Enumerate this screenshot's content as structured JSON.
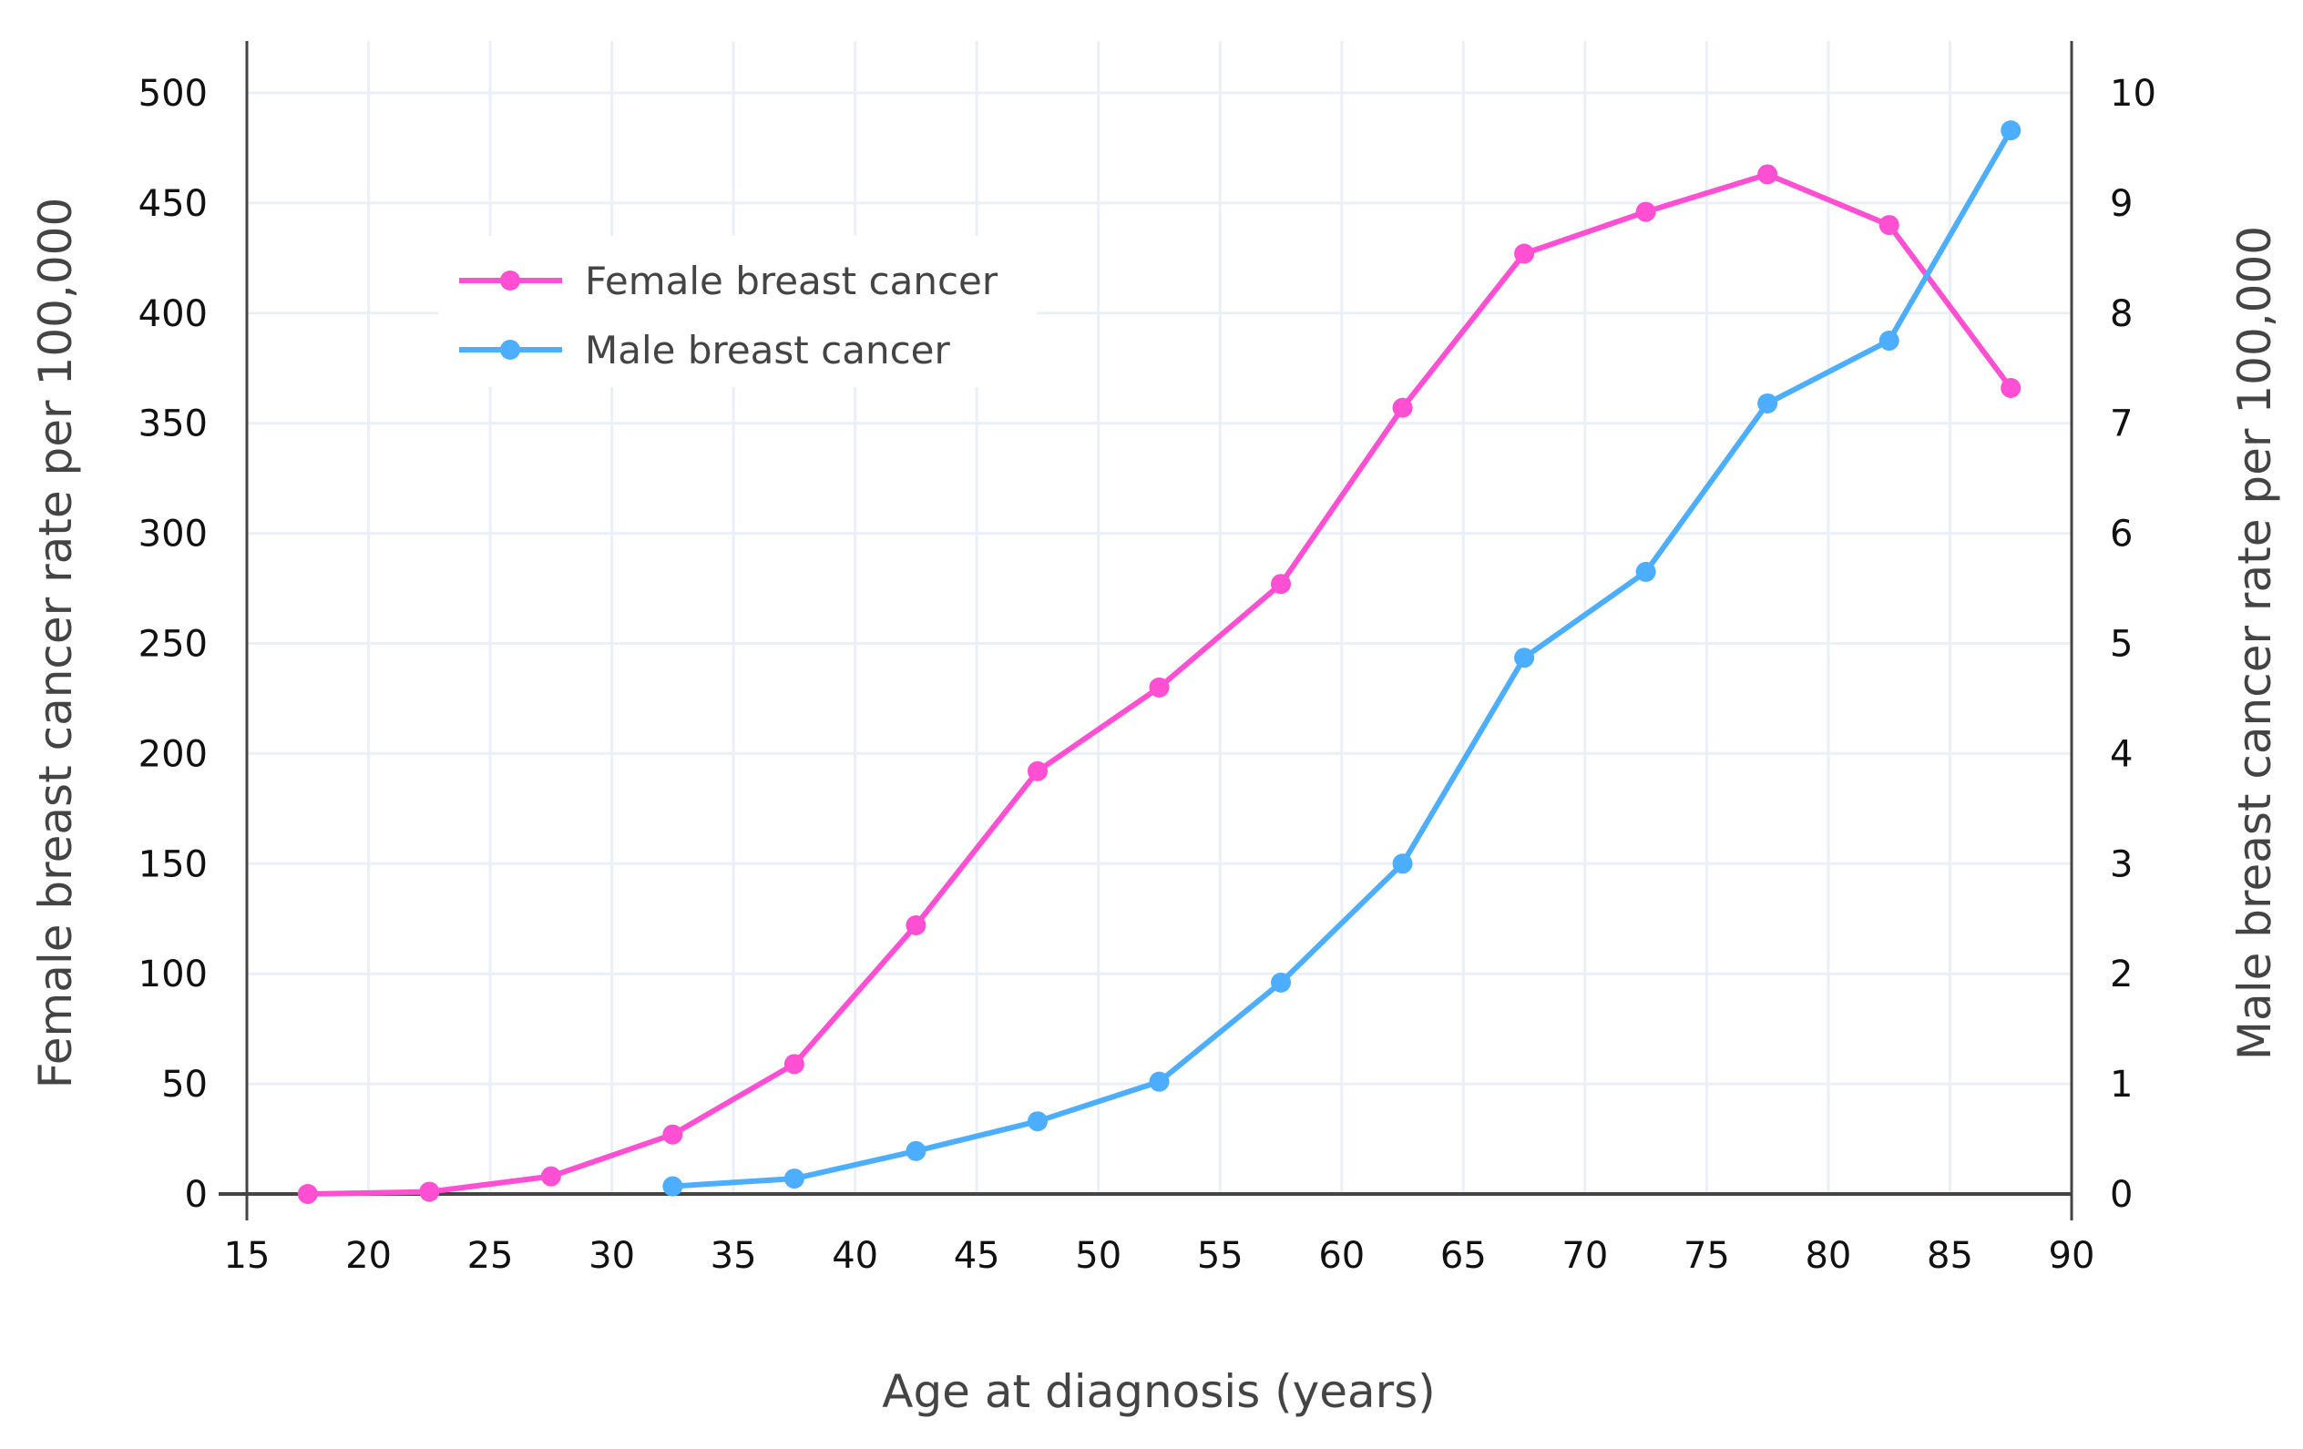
{
  "chart_data": {
    "type": "line",
    "title": "",
    "xlabel": "Age at diagnosis (years)",
    "ylabel": "Female breast cancer rate per 100,000",
    "y2label": "Male breast cancer rate per 100,000",
    "xlim": [
      15,
      90
    ],
    "ylim": [
      0,
      500
    ],
    "y2lim": [
      0,
      10
    ],
    "xticks": [
      15,
      20,
      25,
      30,
      35,
      40,
      45,
      50,
      55,
      60,
      65,
      70,
      75,
      80,
      85,
      90
    ],
    "yticks": [
      0,
      50,
      100,
      150,
      200,
      250,
      300,
      350,
      400,
      450,
      500
    ],
    "y2ticks": [
      0,
      1,
      2,
      3,
      4,
      5,
      6,
      7,
      8,
      9,
      10
    ],
    "grid": true,
    "legend_position": "top-left",
    "series": [
      {
        "name": "Female breast cancer",
        "axis": "left",
        "color": "#ff4fd2",
        "x": [
          17.5,
          22.5,
          27.5,
          32.5,
          37.5,
          42.5,
          47.5,
          52.5,
          57.5,
          62.5,
          67.5,
          72.5,
          77.5,
          82.5,
          87.5
        ],
        "values": [
          0,
          1,
          8,
          27,
          59,
          122,
          192,
          230,
          277,
          357,
          427,
          446,
          463,
          440,
          366
        ]
      },
      {
        "name": "Male breast cancer",
        "axis": "right",
        "color": "#4daeff",
        "x": [
          32.5,
          37.5,
          42.5,
          47.5,
          52.5,
          57.5,
          62.5,
          67.5,
          72.5,
          77.5,
          82.5,
          87.5
        ],
        "values": [
          0.07,
          0.14,
          0.39,
          0.66,
          1.02,
          1.92,
          3.0,
          4.87,
          5.65,
          7.18,
          7.75,
          9.66
        ]
      }
    ]
  }
}
